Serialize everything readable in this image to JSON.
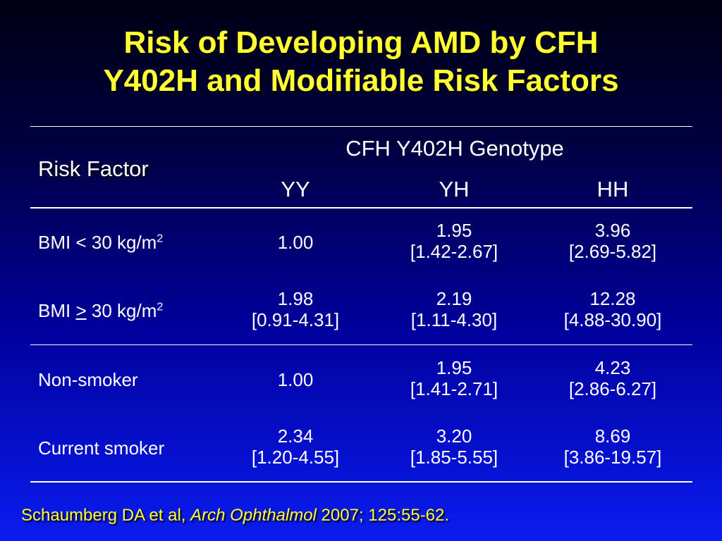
{
  "title": {
    "line1": "Risk of Developing AMD by CFH",
    "line2": "Y402H and Modifiable Risk Factors"
  },
  "table": {
    "risk_factor_header": "Risk Factor",
    "genotype_header": "CFH Y402H Genotype",
    "genotypes": [
      "YY",
      "YH",
      "HH"
    ],
    "rows": [
      {
        "label_main": "BMI < 30 kg/m",
        "label_prefix": "",
        "label_symbol": "",
        "label_suffix": "",
        "label_sup": "2",
        "cells": [
          {
            "value": "1.00",
            "ci": ""
          },
          {
            "value": "1.95",
            "ci": "[1.42-2.67]"
          },
          {
            "value": "3.96",
            "ci": "[2.69-5.82]"
          }
        ]
      },
      {
        "label_main": "",
        "label_prefix": "BMI ",
        "label_symbol": ">",
        "label_suffix": " 30 kg/m",
        "label_sup": "2",
        "cells": [
          {
            "value": "1.98",
            "ci": "[0.91-4.31]"
          },
          {
            "value": "2.19",
            "ci": "[1.11-4.30]"
          },
          {
            "value": "12.28",
            "ci": "[4.88-30.90]"
          }
        ]
      },
      {
        "label_main": "Non-smoker",
        "label_prefix": "",
        "label_symbol": "",
        "label_suffix": "",
        "label_sup": "",
        "cells": [
          {
            "value": "1.00",
            "ci": ""
          },
          {
            "value": "1.95",
            "ci": "[1.41-2.71]"
          },
          {
            "value": "4.23",
            "ci": "[2.86-6.27]"
          }
        ]
      },
      {
        "label_main": "Current smoker",
        "label_prefix": "",
        "label_symbol": "",
        "label_suffix": "",
        "label_sup": "",
        "cells": [
          {
            "value": "2.34",
            "ci": "[1.20-4.55]"
          },
          {
            "value": "3.20",
            "ci": "[1.85-5.55]"
          },
          {
            "value": "8.69",
            "ci": "[3.86-19.57]"
          }
        ]
      }
    ]
  },
  "citation": {
    "authors": "Schaumberg DA et al, ",
    "journal": "Arch Ophthalmol",
    "details": " 2007; 125:55-62."
  },
  "colors": {
    "title": "#ffff33",
    "text": "#ffffff",
    "background_top": "#000014",
    "background_bottom": "#0a1cf0"
  }
}
